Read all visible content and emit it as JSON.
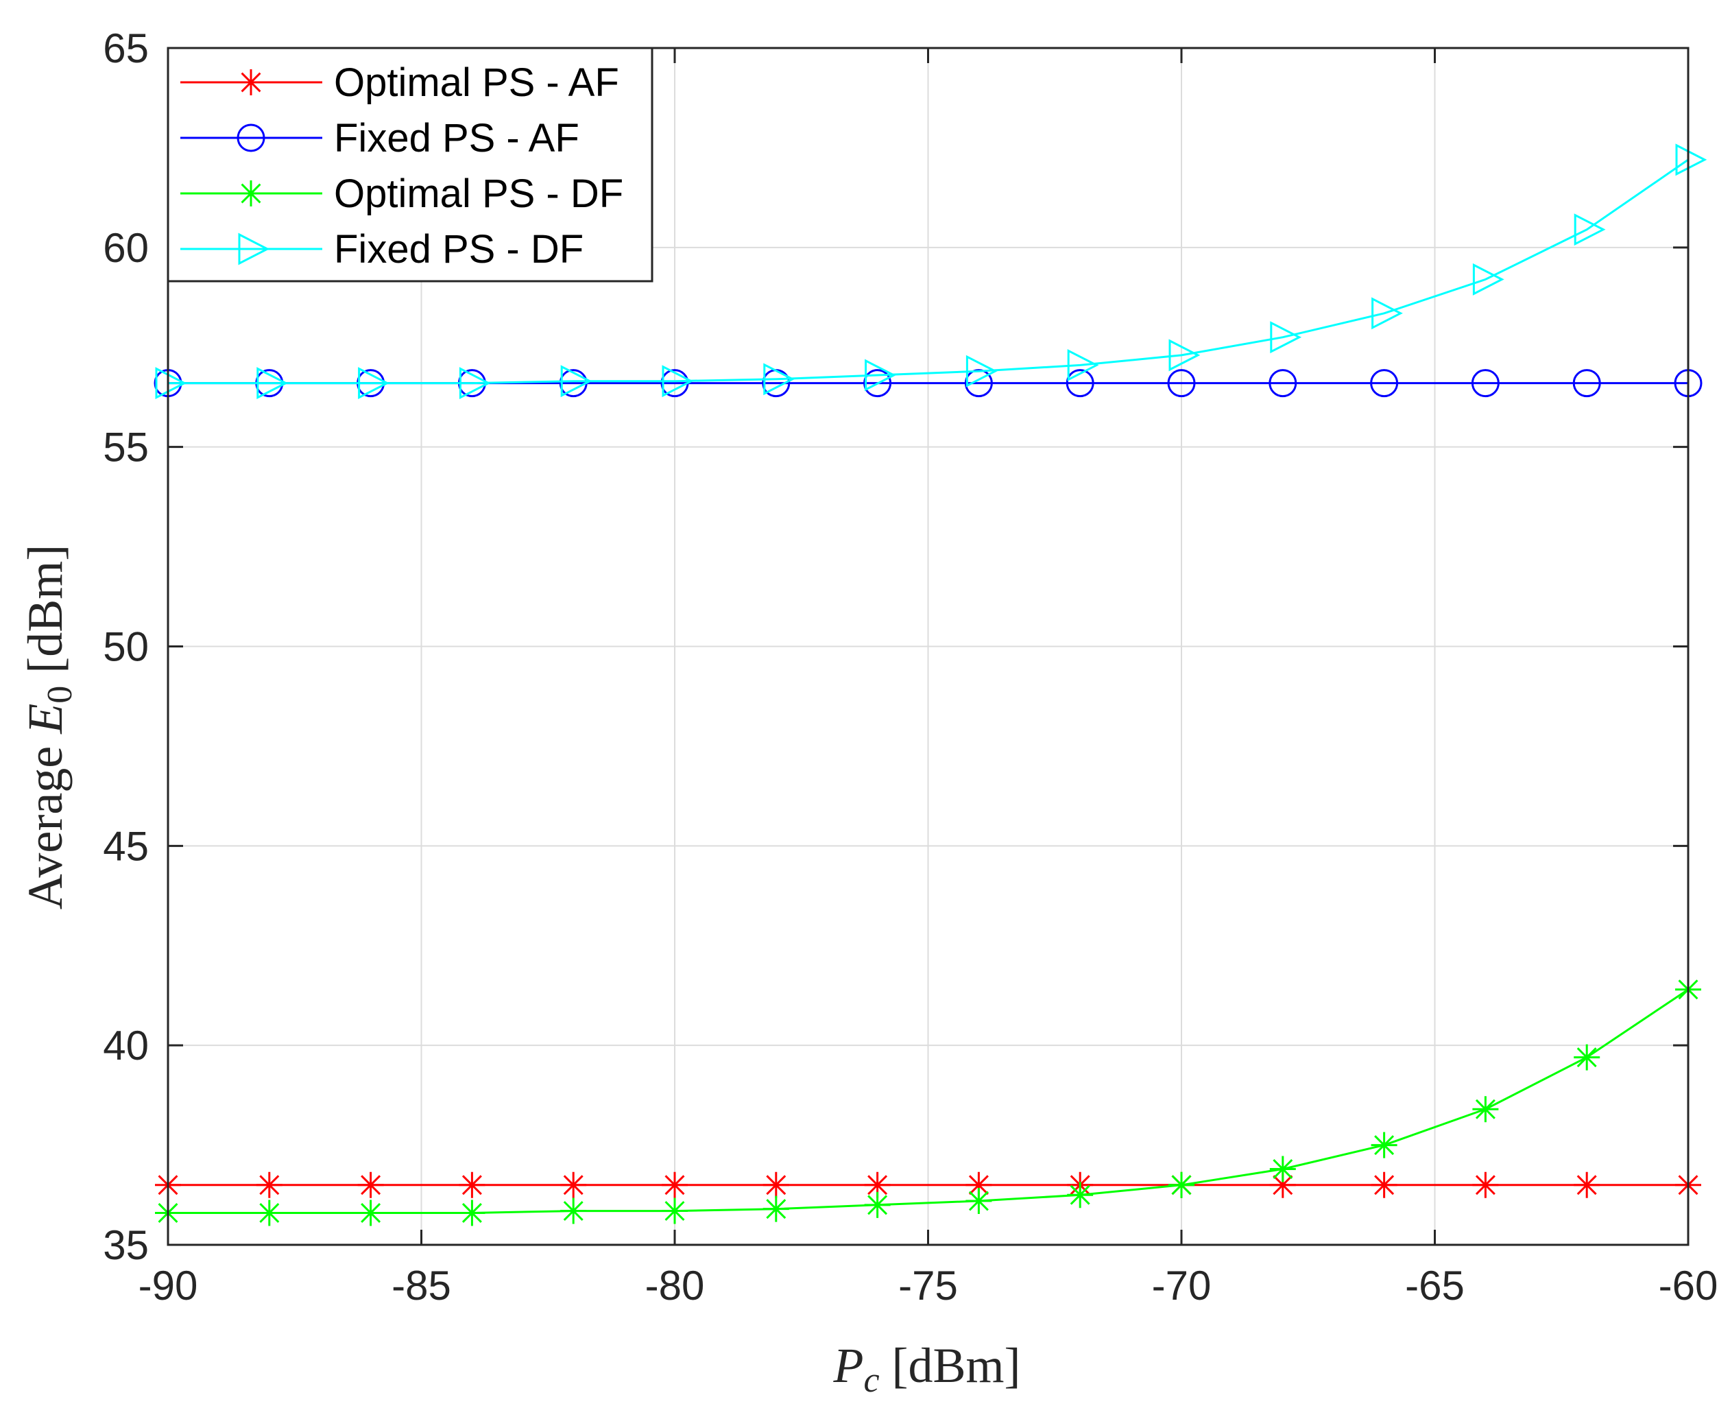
{
  "chart_data": {
    "type": "line",
    "xlabel": {
      "main": "P",
      "sub": "c",
      "unit": " [dBm]"
    },
    "ylabel": {
      "prefix": "Average ",
      "main": "E",
      "sub": "0",
      "unit": " [dBm]"
    },
    "xlim": [
      -90,
      -60
    ],
    "ylim": [
      35,
      65
    ],
    "xticks": [
      -90,
      -85,
      -80,
      -75,
      -70,
      -65,
      -60
    ],
    "yticks": [
      35,
      40,
      45,
      50,
      55,
      60,
      65
    ],
    "grid": true,
    "legend_position": "top-left",
    "x": [
      -90,
      -88,
      -86,
      -84,
      -82,
      -80,
      -78,
      -76,
      -74,
      -72,
      -70,
      -68,
      -66,
      -64,
      -62,
      -60
    ],
    "series": [
      {
        "name": "Optimal PS - AF",
        "color": "#ff0000",
        "marker": "asterisk",
        "values": [
          36.5,
          36.5,
          36.5,
          36.5,
          36.5,
          36.5,
          36.5,
          36.5,
          36.5,
          36.5,
          36.5,
          36.5,
          36.5,
          36.5,
          36.5,
          36.5
        ]
      },
      {
        "name": "Fixed PS - AF",
        "color": "#0000ff",
        "marker": "circle",
        "values": [
          56.6,
          56.6,
          56.6,
          56.6,
          56.6,
          56.6,
          56.6,
          56.6,
          56.6,
          56.6,
          56.6,
          56.6,
          56.6,
          56.6,
          56.6,
          56.6
        ]
      },
      {
        "name": "Optimal PS - DF",
        "color": "#00ff00",
        "marker": "asterisk",
        "values": [
          35.8,
          35.8,
          35.8,
          35.8,
          35.85,
          35.85,
          35.9,
          36.0,
          36.1,
          36.25,
          36.5,
          36.9,
          37.5,
          38.4,
          39.7,
          41.4
        ]
      },
      {
        "name": "Fixed PS - DF",
        "color": "#00ffff",
        "marker": "triangle-right",
        "values": [
          56.6,
          56.6,
          56.6,
          56.6,
          56.65,
          56.65,
          56.7,
          56.8,
          56.9,
          57.05,
          57.3,
          57.75,
          58.35,
          59.2,
          60.45,
          62.2
        ]
      }
    ]
  }
}
